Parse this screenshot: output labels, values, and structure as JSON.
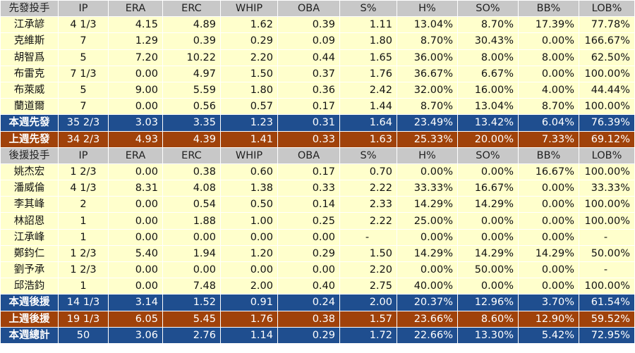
{
  "colors": {
    "header": "#c8c8c8",
    "row": "#ffffcc",
    "summary_blue": "#1f4e8f",
    "summary_brown": "#a0420a"
  },
  "table": {
    "rows": [
      {
        "type": "header",
        "cells": [
          "先發投手",
          "IP",
          "ERA",
          "ERC",
          "WHIP",
          "OBA",
          "S%",
          "H%",
          "SO%",
          "BB%",
          "LOB%"
        ]
      },
      {
        "type": "row",
        "cells": [
          "江承諺",
          "4 1/3",
          "4.15",
          "4.89",
          "1.62",
          "0.39",
          "1.11",
          "13.04%",
          "8.70%",
          "17.39%",
          "77.78%"
        ]
      },
      {
        "type": "row",
        "cells": [
          "克維斯",
          "7",
          "1.29",
          "0.39",
          "0.29",
          "0.09",
          "1.80",
          "8.70%",
          "30.43%",
          "0.00%",
          "166.67%"
        ]
      },
      {
        "type": "row",
        "cells": [
          "胡智爲",
          "5",
          "7.20",
          "10.22",
          "2.20",
          "0.44",
          "1.65",
          "36.00%",
          "8.00%",
          "8.00%",
          "62.50%"
        ]
      },
      {
        "type": "row",
        "cells": [
          "布雷克",
          "7 1/3",
          "0.00",
          "4.97",
          "1.50",
          "0.37",
          "1.76",
          "36.67%",
          "6.67%",
          "0.00%",
          "100.00%"
        ]
      },
      {
        "type": "row",
        "cells": [
          "布萊威",
          "5",
          "9.00",
          "5.59",
          "1.80",
          "0.36",
          "2.42",
          "32.00%",
          "16.00%",
          "4.00%",
          "44.44%"
        ]
      },
      {
        "type": "row",
        "cells": [
          "蘭道爾",
          "7",
          "0.00",
          "0.56",
          "0.57",
          "0.17",
          "1.44",
          "8.70%",
          "13.04%",
          "8.70%",
          "100.00%"
        ]
      },
      {
        "type": "blue",
        "cells": [
          "本週先發",
          "35 2/3",
          "3.03",
          "3.35",
          "1.23",
          "0.31",
          "1.64",
          "23.49%",
          "13.42%",
          "6.04%",
          "76.39%"
        ]
      },
      {
        "type": "brown",
        "cells": [
          "上週先發",
          "34 2/3",
          "4.93",
          "4.39",
          "1.41",
          "0.33",
          "1.63",
          "25.33%",
          "20.00%",
          "7.33%",
          "69.12%"
        ]
      },
      {
        "type": "header",
        "cells": [
          "後援投手",
          "IP",
          "ERA",
          "ERC",
          "WHIP",
          "OBA",
          "S%",
          "H%",
          "SO%",
          "BB%",
          "LOB%"
        ]
      },
      {
        "type": "row",
        "cells": [
          "姚杰宏",
          "1 2/3",
          "0.00",
          "0.38",
          "0.60",
          "0.17",
          "0.70",
          "0.00%",
          "0.00%",
          "16.67%",
          "100.00%"
        ]
      },
      {
        "type": "row",
        "cells": [
          "潘威倫",
          "4 1/3",
          "8.31",
          "4.08",
          "1.38",
          "0.33",
          "2.22",
          "33.33%",
          "16.67%",
          "0.00%",
          "33.33%"
        ]
      },
      {
        "type": "row",
        "cells": [
          "李其峰",
          "2",
          "0.00",
          "0.54",
          "0.50",
          "0.14",
          "2.33",
          "14.29%",
          "14.29%",
          "0.00%",
          "100.00%"
        ]
      },
      {
        "type": "row",
        "cells": [
          "林詔恩",
          "1",
          "0.00",
          "1.88",
          "1.00",
          "0.25",
          "2.22",
          "25.00%",
          "0.00%",
          "0.00%",
          "100.00%"
        ]
      },
      {
        "type": "row",
        "cells": [
          "江承峰",
          "1",
          "0.00",
          "0.00",
          "0.00",
          "0.00",
          "-",
          "0.00%",
          "0.00%",
          "0.00%",
          "-"
        ]
      },
      {
        "type": "row",
        "cells": [
          "鄭鈞仁",
          "1 2/3",
          "5.40",
          "1.94",
          "1.20",
          "0.29",
          "1.50",
          "14.29%",
          "14.29%",
          "14.29%",
          "50.00%"
        ]
      },
      {
        "type": "row",
        "cells": [
          "劉予承",
          "1 2/3",
          "0.00",
          "0.00",
          "0.00",
          "0.00",
          "2.20",
          "0.00%",
          "50.00%",
          "0.00%",
          "-"
        ]
      },
      {
        "type": "row",
        "cells": [
          "邱浩鈞",
          "1",
          "0.00",
          "7.48",
          "2.00",
          "0.40",
          "2.75",
          "40.00%",
          "0.00%",
          "0.00%",
          "100.00%"
        ]
      },
      {
        "type": "blue",
        "cells": [
          "本週後援",
          "14 1/3",
          "3.14",
          "1.52",
          "0.91",
          "0.24",
          "2.00",
          "20.37%",
          "12.96%",
          "3.70%",
          "61.54%"
        ]
      },
      {
        "type": "brown",
        "cells": [
          "上週後援",
          "19 1/3",
          "6.05",
          "5.45",
          "1.76",
          "0.38",
          "1.57",
          "23.66%",
          "8.60%",
          "12.90%",
          "59.52%"
        ]
      },
      {
        "type": "blue",
        "cells": [
          "本週總計",
          "50",
          "3.06",
          "2.76",
          "1.14",
          "0.29",
          "1.72",
          "22.66%",
          "13.30%",
          "5.42%",
          "72.95%"
        ]
      }
    ]
  }
}
